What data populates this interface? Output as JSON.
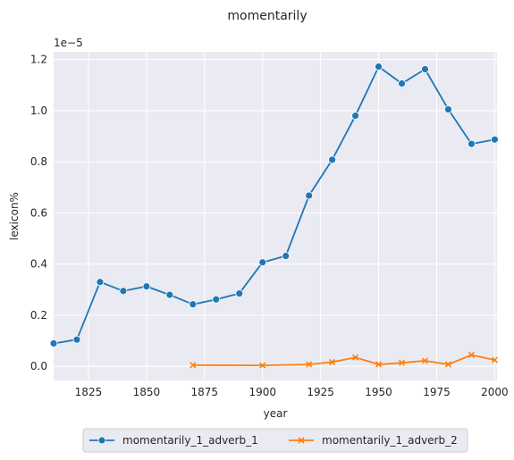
{
  "chart_data": {
    "type": "line",
    "title": "momentarily",
    "xlabel": "year",
    "ylabel": "lexicon%",
    "scale_note": "1e−5",
    "xlim": [
      1810,
      2001
    ],
    "ylim": [
      -0.055,
      1.23
    ],
    "xticks": [
      1825,
      1850,
      1875,
      1900,
      1925,
      1950,
      1975,
      2000
    ],
    "xtick_labels": [
      "1825",
      "1850",
      "1875",
      "1900",
      "1925",
      "1950",
      "1975",
      "2000"
    ],
    "yticks": [
      0.0,
      0.2,
      0.4,
      0.6,
      0.8,
      1.0,
      1.2
    ],
    "ytick_labels": [
      "0.0",
      "0.2",
      "0.4",
      "0.6",
      "0.8",
      "1.0",
      "1.2"
    ],
    "grid": true,
    "legend_position": "bottom-center",
    "series": [
      {
        "name": "momentarily_1_adverb_1",
        "color": "#1f77b4",
        "marker": "circle",
        "x": [
          1810,
          1820,
          1830,
          1840,
          1850,
          1860,
          1870,
          1880,
          1890,
          1900,
          1910,
          1920,
          1930,
          1940,
          1950,
          1960,
          1970,
          1980,
          1990,
          2000
        ],
        "y": [
          0.09,
          0.105,
          0.33,
          0.295,
          0.313,
          0.28,
          0.243,
          0.262,
          0.285,
          0.407,
          0.432,
          0.668,
          0.808,
          0.98,
          1.172,
          1.106,
          1.162,
          1.005,
          0.87,
          0.887
        ]
      },
      {
        "name": "momentarily_1_adverb_2",
        "color": "#ff7f0e",
        "marker": "x",
        "x": [
          1870,
          1900,
          1920,
          1930,
          1940,
          1950,
          1960,
          1970,
          1980,
          1990,
          2000
        ],
        "y": [
          0.005,
          0.004,
          0.008,
          0.017,
          0.035,
          0.008,
          0.014,
          0.022,
          0.008,
          0.045,
          0.025
        ]
      }
    ]
  }
}
